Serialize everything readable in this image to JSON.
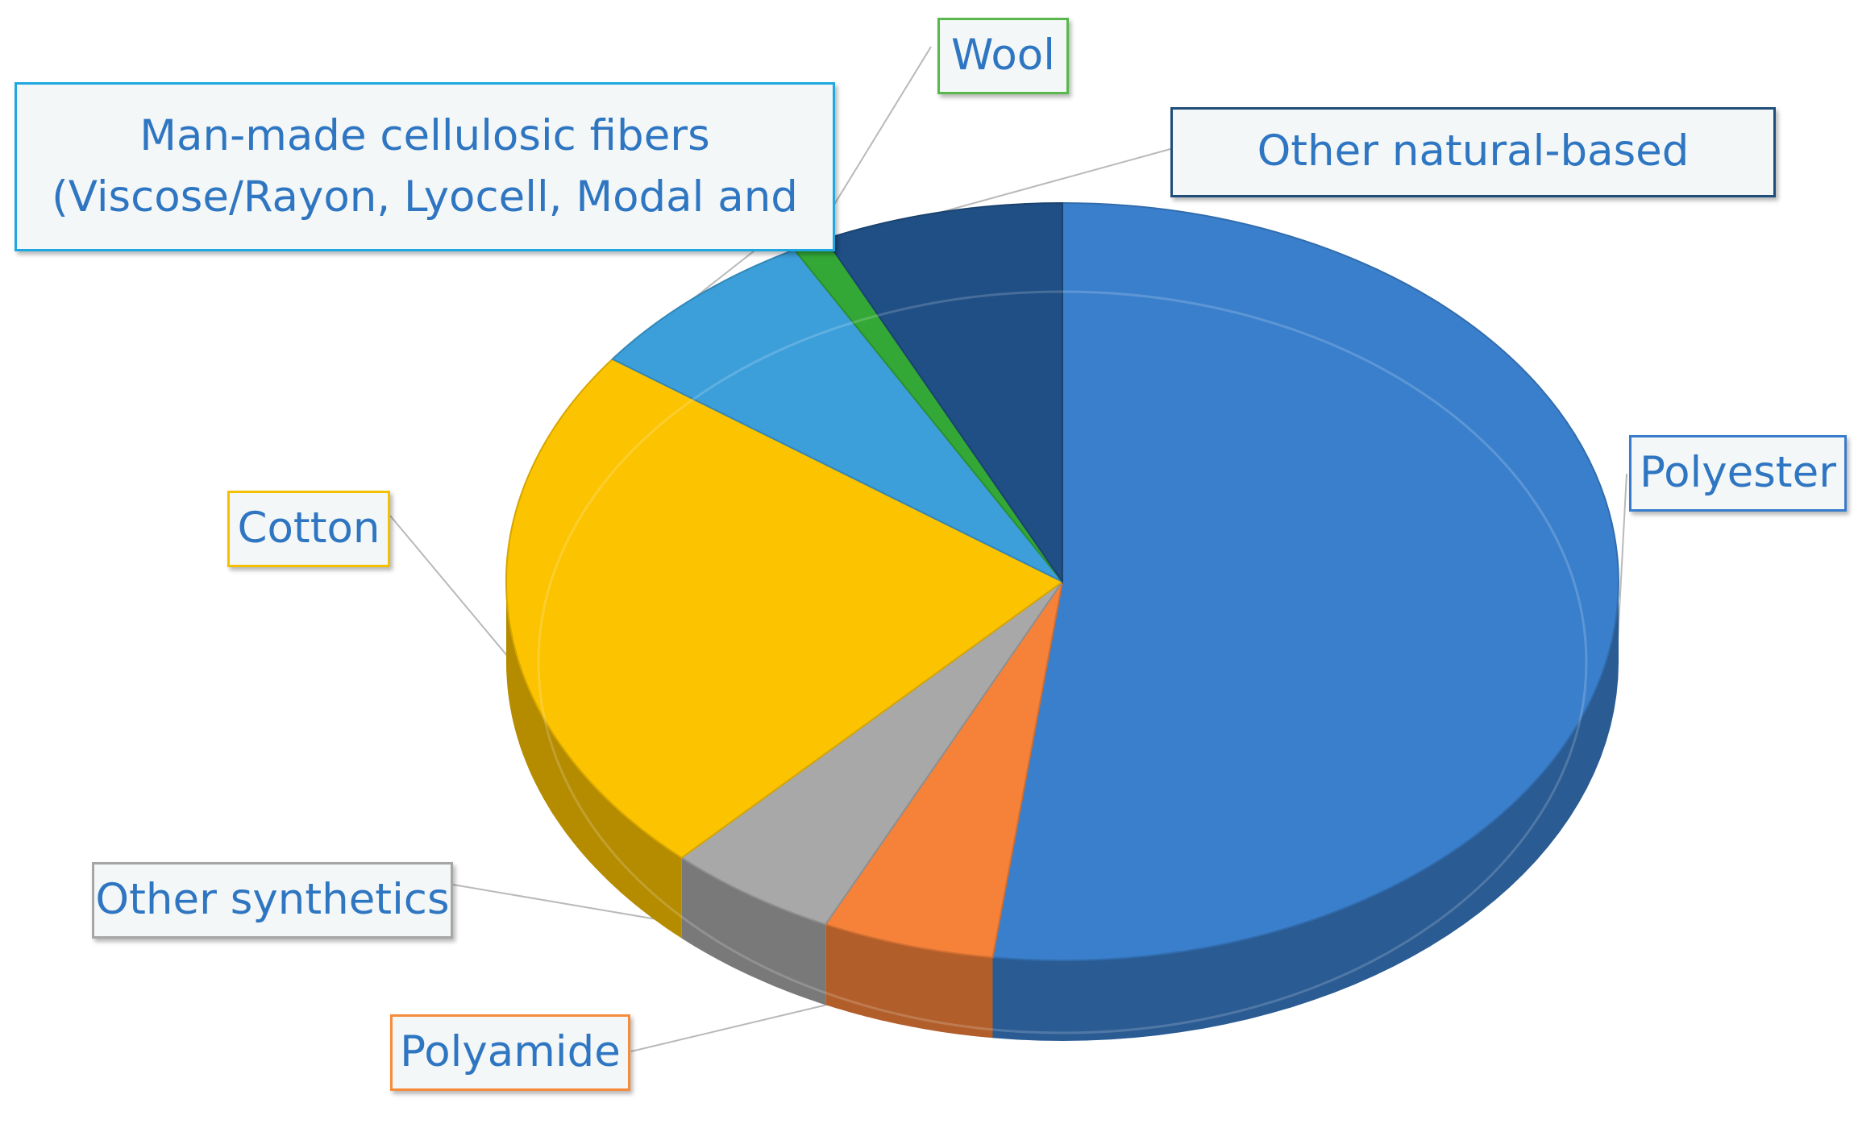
{
  "chart_data": {
    "type": "pie",
    "three_d": true,
    "legend": "none",
    "slices": [
      {
        "label": "Polyester",
        "value": 52,
        "color": "#3a7fcc",
        "label_lines": [
          "Polyester"
        ]
      },
      {
        "label": "Polyamide",
        "value": 5,
        "color": "#f6823a",
        "label_lines": [
          "Polyamide"
        ]
      },
      {
        "label": "Other synthetics",
        "value": 5,
        "color": "#a8a8a8",
        "label_lines": [
          "Other synthetics"
        ]
      },
      {
        "label": "Cotton",
        "value": 23,
        "color": "#fcc300",
        "label_lines": [
          "Cotton"
        ]
      },
      {
        "label": "Man-made cellulosic fibers (Viscose/Rayon, Lyocell, Modal and",
        "value": 7,
        "color": "#3c9fd9",
        "label_lines": [
          "Man-made cellulosic fibers",
          "(Viscose/Rayon, Lyocell, Modal and"
        ]
      },
      {
        "label": "Wool",
        "value": 1,
        "color": "#33a837",
        "label_lines": [
          "Wool"
        ]
      },
      {
        "label": "Other natural-based",
        "value": 7,
        "color": "#1f4f84",
        "label_lines": [
          "Other natural-based"
        ]
      }
    ]
  }
}
